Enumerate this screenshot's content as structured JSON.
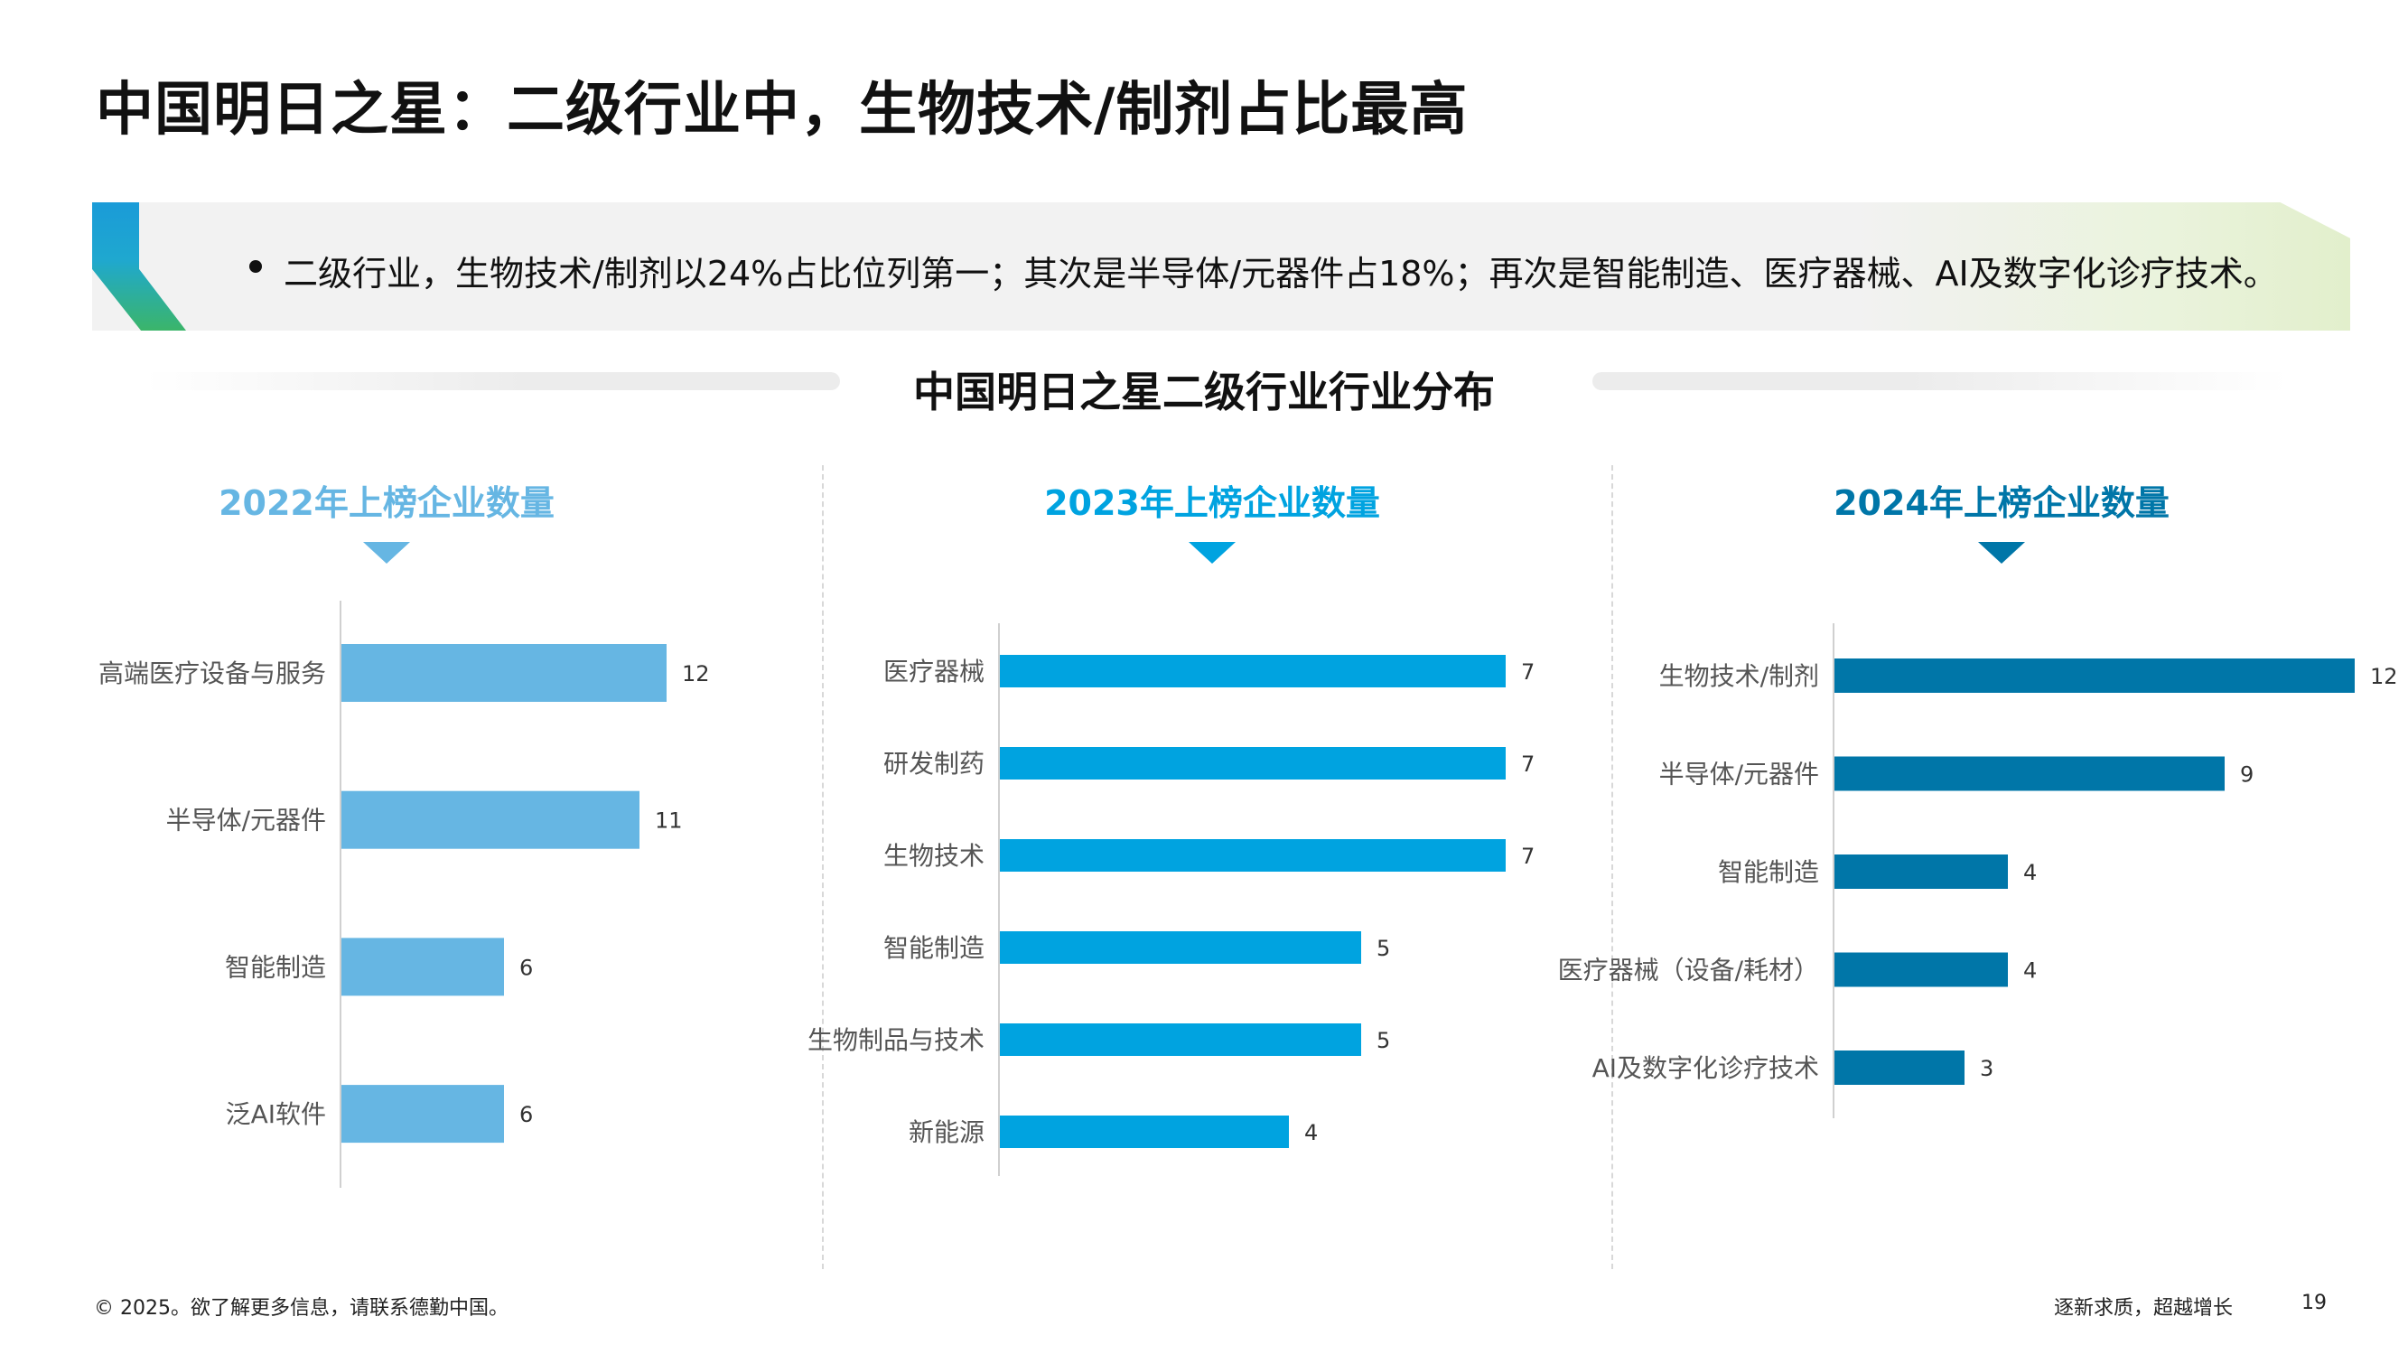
{
  "title": "中国明日之星：二级行业中，生物技术/制剂占比最高",
  "banner": {
    "text": "二级行业，生物技术/制剂以24%占比位列第一；其次是半导体/元器件占18%；再次是智能制造、医疗器械、AI及数字化诊疗技术。"
  },
  "section_title": "中国明日之星二级行业行业分布",
  "chart_data": [
    {
      "type": "bar",
      "orientation": "horizontal",
      "title": "2022年上榜企业数量",
      "color": "#66b6e3",
      "categories": [
        "高端医疗设备与服务",
        "半导体/元器件",
        "智能制造",
        "泛AI软件"
      ],
      "values": [
        12,
        11,
        6,
        6
      ]
    },
    {
      "type": "bar",
      "orientation": "horizontal",
      "title": "2023年上榜企业数量",
      "color": "#00a3e0",
      "categories": [
        "医疗器械",
        "研发制药",
        "生物技术",
        "智能制造",
        "生物制品与技术",
        "新能源"
      ],
      "values": [
        7,
        7,
        7,
        5,
        5,
        4
      ]
    },
    {
      "type": "bar",
      "orientation": "horizontal",
      "title": "2024年上榜企业数量",
      "color": "#0076a8",
      "categories": [
        "生物技术/制剂",
        "半导体/元器件",
        "智能制造",
        "医疗器械（设备/耗材）",
        "AI及数字化诊疗技术"
      ],
      "values": [
        12,
        9,
        4,
        4,
        3
      ]
    }
  ],
  "footer": {
    "copyright": "© 2025。欲了解更多信息，请联系德勤中国。",
    "slogan": "逐新求质，超越增长",
    "page": "19"
  }
}
